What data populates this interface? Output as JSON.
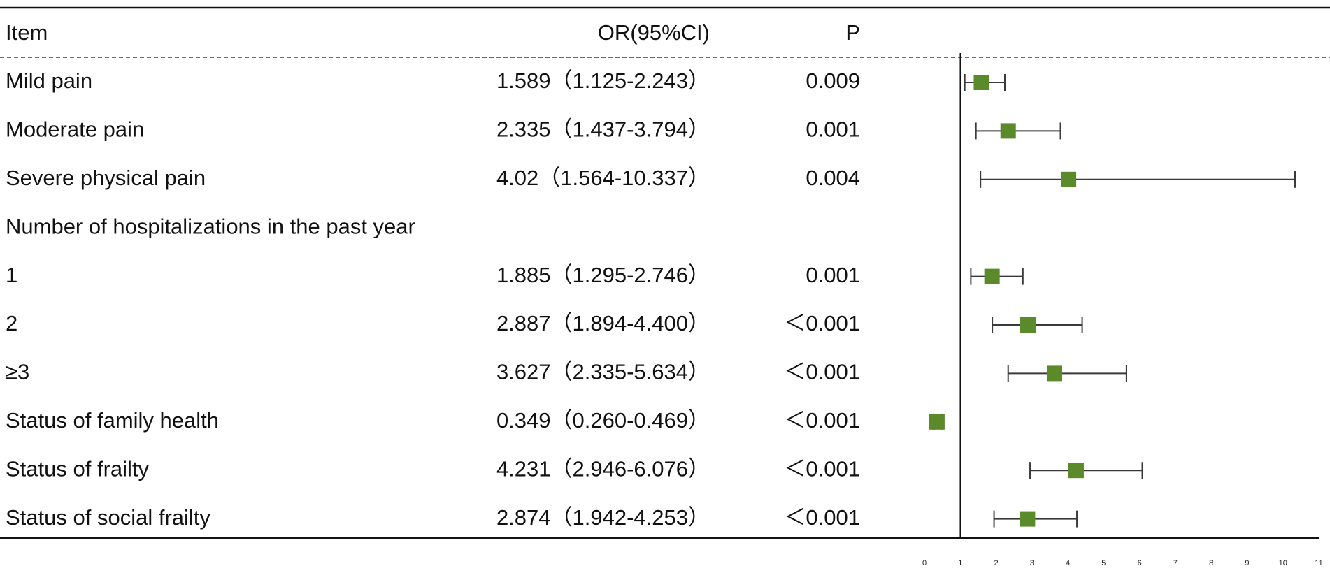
{
  "chart_data": {
    "type": "forest",
    "columns": {
      "item": "Item",
      "or": "OR(95%CI)",
      "p": "P"
    },
    "rows": [
      {
        "label": "Mild pain",
        "or_text": "1.589（1.125-2.243）",
        "p_text": "0.009",
        "or": 1.589,
        "ci_low": 1.125,
        "ci_high": 2.243
      },
      {
        "label": "Moderate pain",
        "or_text": "2.335（1.437-3.794）",
        "p_text": "0.001",
        "or": 2.335,
        "ci_low": 1.437,
        "ci_high": 3.794
      },
      {
        "label": "Severe physical pain",
        "or_text": "4.02（1.564-10.337）",
        "p_text": "0.004",
        "or": 4.02,
        "ci_low": 1.564,
        "ci_high": 10.337
      },
      {
        "label": "Number of hospitalizations in the past year",
        "or_text": "",
        "p_text": "",
        "or": null,
        "ci_low": null,
        "ci_high": null
      },
      {
        "label": "1",
        "or_text": "1.885（1.295-2.746）",
        "p_text": "0.001",
        "or": 1.885,
        "ci_low": 1.295,
        "ci_high": 2.746
      },
      {
        "label": "2",
        "or_text": "2.887（1.894-4.400）",
        "p_text": "＜0.001",
        "or": 2.887,
        "ci_low": 1.894,
        "ci_high": 4.4
      },
      {
        "label": "≥3",
        "or_text": "3.627（2.335-5.634）",
        "p_text": "＜0.001",
        "or": 3.627,
        "ci_low": 2.335,
        "ci_high": 5.634
      },
      {
        "label": "Status of family health",
        "or_text": "0.349（0.260-0.469）",
        "p_text": "＜0.001",
        "or": 0.349,
        "ci_low": 0.26,
        "ci_high": 0.469
      },
      {
        "label": "Status of frailty",
        "or_text": "4.231（2.946-6.076）",
        "p_text": "＜0.001",
        "or": 4.231,
        "ci_low": 2.946,
        "ci_high": 6.076
      },
      {
        "label": "Status of social frailty",
        "or_text": "2.874（1.942-4.253）",
        "p_text": "＜0.001",
        "or": 2.874,
        "ci_low": 1.942,
        "ci_high": 4.253
      }
    ],
    "x_ticks": [
      "0",
      "1",
      "2",
      "3",
      "4",
      "5",
      "6",
      "7",
      "8",
      "9",
      "10",
      "11"
    ],
    "xlim": [
      0,
      11
    ],
    "reference_line": 1,
    "marker_color": "#5a8a2a",
    "line_color": "#3a3a3a"
  }
}
